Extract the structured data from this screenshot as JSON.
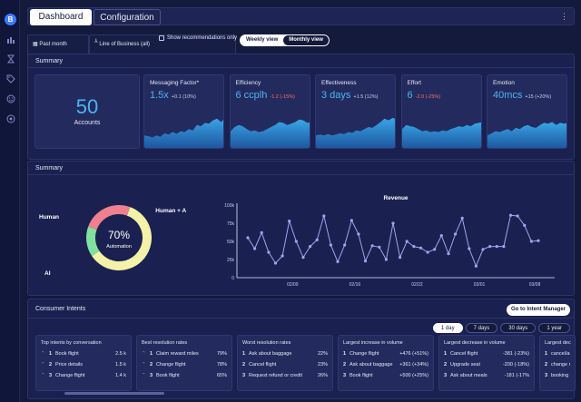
{
  "tabs": {
    "dashboard": "Dashboard",
    "configuration": "Configuration"
  },
  "filters": {
    "period": "Past month",
    "line_of_business": "Line of Business (all)",
    "show_recommendations": "Show recommendations only",
    "weekly": "Weekly view",
    "monthly": "Monthly view"
  },
  "summary1": {
    "title": "Summary",
    "accounts": {
      "value": "50",
      "label": "Accounts"
    },
    "metrics": [
      {
        "title": "Messaging Factor*",
        "value": "1.5x",
        "delta": "+0.1 (10%)",
        "negative": false,
        "spark": [
          0.3,
          0.28,
          0.25,
          0.3,
          0.27,
          0.35,
          0.32,
          0.38,
          0.34,
          0.4,
          0.38,
          0.45,
          0.42,
          0.55,
          0.52,
          0.6,
          0.58,
          0.66,
          0.7,
          0.62,
          0.72
        ]
      },
      {
        "title": "Efficiency",
        "value": "6 ccplh",
        "delta": "-1.2 (-15%)",
        "negative": true,
        "spark": [
          0.4,
          0.5,
          0.55,
          0.52,
          0.45,
          0.4,
          0.42,
          0.38,
          0.4,
          0.45,
          0.5,
          0.55,
          0.62,
          0.6,
          0.55,
          0.58,
          0.62,
          0.68,
          0.66,
          0.6,
          0.62
        ]
      },
      {
        "title": "Effectiveness",
        "value": "3 days",
        "delta": "+1.5 (12%)",
        "negative": false,
        "spark": [
          0.3,
          0.32,
          0.3,
          0.33,
          0.3,
          0.32,
          0.35,
          0.33,
          0.38,
          0.36,
          0.42,
          0.4,
          0.45,
          0.5,
          0.48,
          0.55,
          0.62,
          0.7,
          0.66,
          0.72,
          0.68
        ]
      },
      {
        "title": "Effort",
        "value": "6",
        "delta": "-2.0 (-25%)",
        "negative": true,
        "spark": [
          0.45,
          0.55,
          0.52,
          0.5,
          0.45,
          0.4,
          0.42,
          0.38,
          0.4,
          0.38,
          0.42,
          0.4,
          0.45,
          0.48,
          0.52,
          0.5,
          0.55,
          0.52,
          0.58,
          0.6,
          0.62
        ]
      },
      {
        "title": "Emotion",
        "value": "40mcs",
        "delta": "+15 (+20%)",
        "negative": false,
        "spark": [
          0.3,
          0.35,
          0.4,
          0.38,
          0.42,
          0.45,
          0.4,
          0.48,
          0.45,
          0.52,
          0.55,
          0.5,
          0.48,
          0.55,
          0.6,
          0.58,
          0.62,
          0.55,
          0.6,
          0.58,
          0.6
        ]
      }
    ]
  },
  "summary2": {
    "title": "Summary",
    "donut": {
      "center_value": "70%",
      "center_label": "Automation"
    },
    "chart_data": [
      {
        "type": "pie",
        "categories": [
          "Human + AI",
          "AI",
          "Human"
        ],
        "values": [
          60,
          15,
          25
        ],
        "colors": [
          "#f3f2a8",
          "#7fe0a0",
          "#f0808e"
        ]
      },
      {
        "type": "line",
        "title": "Revenue",
        "x_ticks": [
          "02/09",
          "02/16",
          "02/22",
          "03/01",
          "03/08"
        ],
        "y_ticks": [
          "0",
          "25k",
          "50k",
          "75k",
          "100k"
        ],
        "ylim": [
          0,
          100000
        ],
        "values": [
          55000,
          40000,
          62000,
          35000,
          20000,
          30000,
          78000,
          50000,
          28000,
          43000,
          52000,
          85000,
          45000,
          22000,
          45000,
          79000,
          60000,
          23000,
          44000,
          42000,
          25000,
          75000,
          28000,
          50000,
          43000,
          41000,
          35000,
          39000,
          58000,
          33000,
          60000,
          82000,
          40000,
          16000,
          39000,
          43000,
          43000,
          43000,
          86000,
          85000,
          72000,
          50000,
          51000
        ],
        "color": "#9fa4ee"
      }
    ]
  },
  "intents": {
    "title": "Consumer Intents",
    "button": "Go to Intent Manager",
    "ranges": [
      "1 day",
      "7 days",
      "30 days",
      "1 year"
    ],
    "cards": [
      {
        "title": "Top intents by conversation",
        "rows": [
          [
            "1",
            "Book flight",
            "2.5 k",
            "up"
          ],
          [
            "2",
            "Price details",
            "1.5 k",
            "up"
          ],
          [
            "3",
            "Change flight",
            "1.4 k",
            "up"
          ]
        ]
      },
      {
        "title": "Best resolution rates",
        "rows": [
          [
            "1",
            "Claim reward miles",
            "79%",
            "up"
          ],
          [
            "2",
            "Change flight",
            "78%",
            "up"
          ],
          [
            "3",
            "Book flight",
            "65%",
            "up"
          ]
        ]
      },
      {
        "title": "Worst resolution rates",
        "rows": [
          [
            "1",
            "Ask about baggage",
            "22%",
            ""
          ],
          [
            "2",
            "Cancel flight",
            "23%",
            ""
          ],
          [
            "3",
            "Request refund or credit",
            "26%",
            ""
          ]
        ]
      },
      {
        "title": "Largest increase in volume",
        "rows": [
          [
            "1",
            "Change flight",
            "+476 (+51%)",
            ""
          ],
          [
            "2",
            "Ask about baggage",
            "+361 (+34%)",
            ""
          ],
          [
            "3",
            "Book flight",
            "+500 (+25%)",
            ""
          ]
        ]
      },
      {
        "title": "Largest decrease in volume",
        "rows": [
          [
            "1",
            "Cancel flight",
            "-381 (-23%)",
            ""
          ],
          [
            "2",
            "Upgrade seat",
            "-200 (-18%)",
            ""
          ],
          [
            "3",
            "Ask about meals",
            "-181 (-17%",
            ""
          ]
        ]
      },
      {
        "title": "Largest dec",
        "rows": [
          [
            "1",
            "cancel/ar",
            ""
          ],
          [
            "2",
            "change m",
            ""
          ],
          [
            "3",
            "booking",
            ""
          ]
        ]
      }
    ]
  }
}
